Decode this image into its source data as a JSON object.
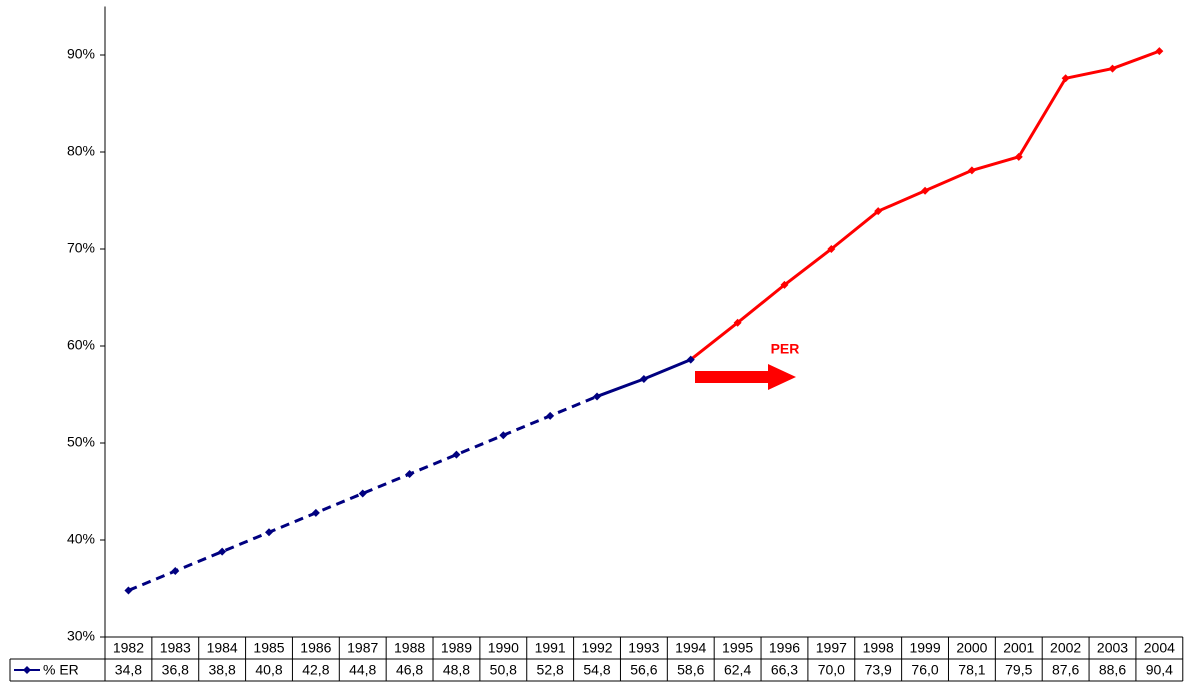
{
  "chart_data": {
    "type": "line",
    "categories": [
      "1982",
      "1983",
      "1984",
      "1985",
      "1986",
      "1987",
      "1988",
      "1989",
      "1990",
      "1991",
      "1992",
      "1993",
      "1994",
      "1995",
      "1996",
      "1997",
      "1998",
      "1999",
      "2000",
      "2001",
      "2002",
      "2003",
      "2004"
    ],
    "series": [
      {
        "name": "% ER",
        "color": "#000080",
        "values": [
          34.8,
          36.8,
          38.8,
          40.8,
          42.8,
          44.8,
          46.8,
          48.8,
          50.8,
          52.8,
          54.8,
          56.6,
          58.6,
          62.4,
          66.3,
          70.0,
          73.9,
          76.0,
          78.1,
          79.5,
          87.6,
          88.6,
          90.4
        ],
        "value_labels": [
          "34,8",
          "36,8",
          "38,8",
          "40,8",
          "42,8",
          "44,8",
          "46,8",
          "48,8",
          "50,8",
          "52,8",
          "54,8",
          "56,6",
          "58,6",
          "62,4",
          "66,3",
          "70,0",
          "73,9",
          "76,0",
          "78,1",
          "79,5",
          "87,6",
          "88,6",
          "90,4"
        ],
        "segments": [
          {
            "from": "1982",
            "to": "1992",
            "color": "#000080",
            "dash": true
          },
          {
            "from": "1992",
            "to": "1994",
            "color": "#000080",
            "dash": false
          },
          {
            "from": "1994",
            "to": "2004",
            "color": "#ff0000",
            "dash": false
          }
        ]
      }
    ],
    "ylim": [
      30,
      95
    ],
    "yticks": [
      {
        "value": 30,
        "label": "30%"
      },
      {
        "value": 40,
        "label": "40%"
      },
      {
        "value": 50,
        "label": "50%"
      },
      {
        "value": 60,
        "label": "60%"
      },
      {
        "value": 70,
        "label": "70%"
      },
      {
        "value": 80,
        "label": "80%"
      },
      {
        "value": 90,
        "label": "90%"
      }
    ],
    "grid": false,
    "data_table": true,
    "annotation": {
      "text": "PER",
      "color": "#ff0000"
    }
  }
}
